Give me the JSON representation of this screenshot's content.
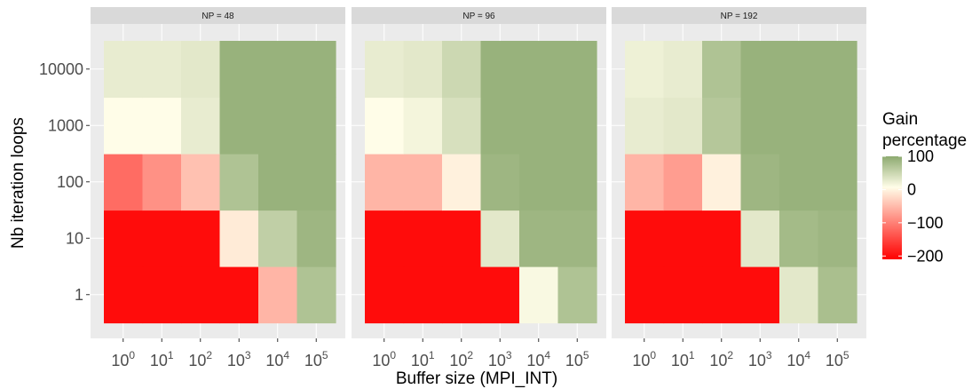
{
  "chart_data": {
    "type": "heatmap",
    "facet_variable": "NP",
    "panels": [
      {
        "label": "NP = 48",
        "values": [
          [
            -200,
            -200,
            -200,
            -200,
            -60,
            70
          ],
          [
            -200,
            -200,
            -200,
            -15,
            55,
            85
          ],
          [
            -120,
            -90,
            -50,
            70,
            90,
            90
          ],
          [
            0,
            0,
            20,
            90,
            90,
            90
          ],
          [
            20,
            20,
            25,
            90,
            90,
            90
          ]
        ]
      },
      {
        "label": "NP = 96",
        "values": [
          [
            -200,
            -200,
            -200,
            -200,
            5,
            70
          ],
          [
            -200,
            -200,
            -200,
            25,
            85,
            85
          ],
          [
            -60,
            -60,
            -10,
            85,
            90,
            90
          ],
          [
            0,
            10,
            35,
            90,
            90,
            90
          ],
          [
            20,
            25,
            45,
            90,
            90,
            90
          ]
        ]
      },
      {
        "label": "NP = 192",
        "values": [
          [
            -200,
            -200,
            -200,
            -200,
            25,
            75
          ],
          [
            -200,
            -200,
            -200,
            25,
            80,
            85
          ],
          [
            -60,
            -80,
            -10,
            85,
            90,
            90
          ],
          [
            20,
            25,
            65,
            90,
            90,
            90
          ],
          [
            15,
            20,
            70,
            90,
            90,
            90
          ]
        ]
      }
    ],
    "x_tick_labels": [
      {
        "base": "10",
        "exp": "0"
      },
      {
        "base": "10",
        "exp": "1"
      },
      {
        "base": "10",
        "exp": "2"
      },
      {
        "base": "10",
        "exp": "3"
      },
      {
        "base": "10",
        "exp": "4"
      },
      {
        "base": "10",
        "exp": "5"
      }
    ],
    "y_tick_labels": [
      "1",
      "10",
      "100",
      "1000",
      "10000"
    ],
    "xlabel": "Buffer size (MPI_INT)",
    "ylabel": "Nb iteration loops",
    "legend": {
      "title_lines": [
        "Gain",
        "percentage"
      ],
      "breaks": [
        100,
        0,
        -100,
        -200
      ],
      "break_labels": [
        "100",
        "0",
        "−100",
        "−200"
      ],
      "range": [
        -210,
        100
      ],
      "position": "right"
    },
    "colors": {
      "low": "#ff0000",
      "mid": "#fffde8",
      "high": "#8daa70",
      "panel_bg": "#ebebeb",
      "strip_bg": "#d9d9d9",
      "grid": "#ffffff"
    },
    "grid": true
  }
}
